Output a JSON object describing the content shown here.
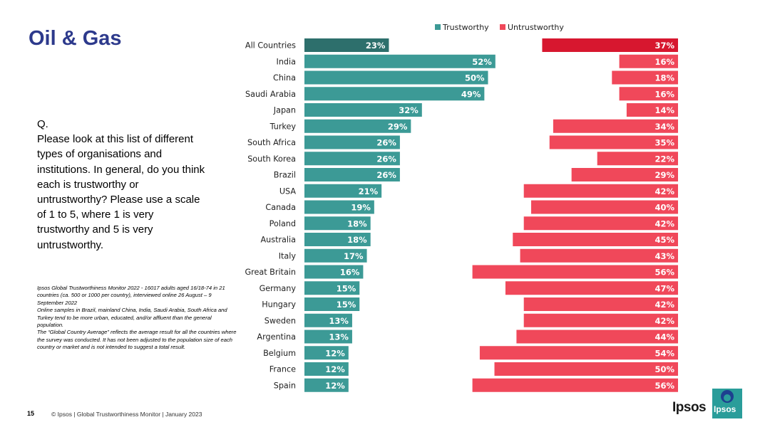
{
  "slide": {
    "title": "Oil & Gas",
    "question_label": "Q.",
    "question_text": "Please look at this list of different types of organisations and institutions. In general, do you think each is trustworthy or untrustworthy? Please use a scale of 1 to 5, where 1 is very trustworthy and 5 is very untrustworthy.",
    "footnote": [
      "Ipsos Global Trustworthiness Monitor 2022 - 16017 adults aged 16/18-74 in 21 countries (ca. 500 or 1000 per country), interviewed online 26 August – 9 September 2022",
      "Online samples in Brazil, mainland China, India, Saudi Arabia, South Africa and Turkey tend to be more urban, educated, and/or affluent than the general population.",
      "The “Global Country Average” reflects the average result for all the countries where the survey was conducted. It has not been adjusted to the population size of each country or market and is not intended to suggest a total result."
    ],
    "page_number": "15",
    "footer": "© Ipsos | Global Trustworthiness Monitor | January 2023",
    "logo_text": "Ipsos",
    "logo_box_text": "Ipsos"
  },
  "chart_data": {
    "type": "bar",
    "orientation": "horizontal",
    "categories": [
      "All Countries",
      "India",
      "China",
      "Saudi Arabia",
      "Japan",
      "Turkey",
      "South Africa",
      "South Korea",
      "Brazil",
      "USA",
      "Canada",
      "Poland",
      "Australia",
      "Italy",
      "Great Britain",
      "Germany",
      "Hungary",
      "Sweden",
      "Argentina",
      "Belgium",
      "France",
      "Spain"
    ],
    "series": [
      {
        "name": "Trustworthy",
        "values": [
          23,
          52,
          50,
          49,
          32,
          29,
          26,
          26,
          26,
          21,
          19,
          18,
          18,
          17,
          16,
          15,
          15,
          13,
          13,
          12,
          12,
          12
        ],
        "color": "#3c9a96",
        "highlight_color": "#2d6f6c",
        "alignment": "left"
      },
      {
        "name": "Untrustworthy",
        "values": [
          37,
          16,
          18,
          16,
          14,
          34,
          35,
          22,
          29,
          42,
          40,
          42,
          45,
          43,
          56,
          47,
          42,
          42,
          44,
          54,
          50,
          56
        ],
        "color": "#f0485a",
        "highlight_color": "#d7172f",
        "alignment": "right"
      }
    ],
    "value_suffix": "%",
    "legend_position": "top",
    "xlim": [
      0,
      100
    ]
  }
}
